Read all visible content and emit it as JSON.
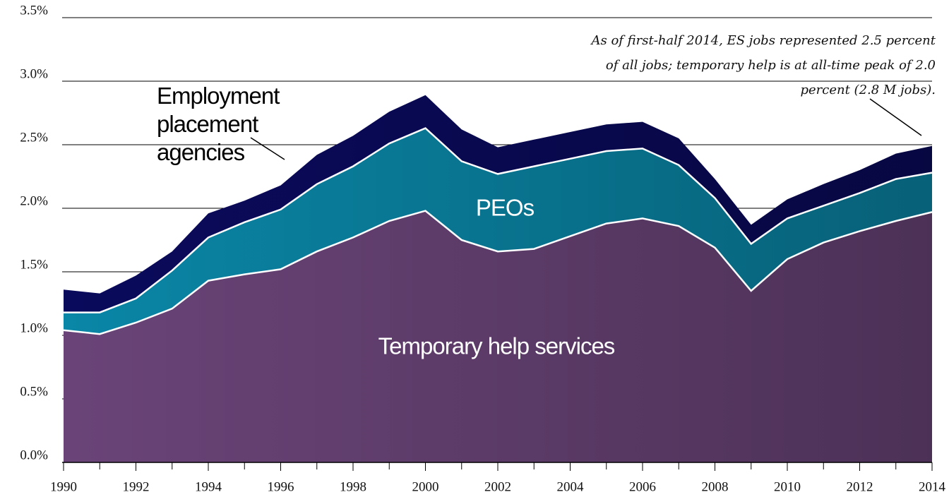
{
  "chart_data": {
    "type": "stacked_area",
    "x": [
      1990,
      1991,
      1992,
      1993,
      1994,
      1995,
      1996,
      1997,
      1998,
      1999,
      2000,
      2001,
      2002,
      2003,
      2004,
      2005,
      2006,
      2007,
      2008,
      2009,
      2010,
      2011,
      2012,
      2013,
      2014
    ],
    "series": [
      {
        "name": "Temporary help services",
        "color": "#6a4478",
        "values": [
          1.04,
          1.01,
          1.1,
          1.21,
          1.43,
          1.48,
          1.52,
          1.66,
          1.77,
          1.9,
          1.98,
          1.75,
          1.66,
          1.68,
          1.78,
          1.88,
          1.92,
          1.86,
          1.69,
          1.35,
          1.6,
          1.73,
          1.82,
          1.9,
          1.97
        ]
      },
      {
        "name": "PEOs",
        "color": "#0a86a6",
        "values": [
          0.14,
          0.17,
          0.19,
          0.3,
          0.34,
          0.41,
          0.47,
          0.53,
          0.56,
          0.61,
          0.65,
          0.62,
          0.61,
          0.65,
          0.61,
          0.57,
          0.55,
          0.48,
          0.39,
          0.37,
          0.32,
          0.29,
          0.3,
          0.33,
          0.31
        ]
      },
      {
        "name": "Employment placement agencies",
        "color": "#0a0a5c",
        "values": [
          0.18,
          0.15,
          0.18,
          0.15,
          0.19,
          0.17,
          0.19,
          0.23,
          0.24,
          0.25,
          0.26,
          0.25,
          0.21,
          0.21,
          0.21,
          0.21,
          0.21,
          0.21,
          0.15,
          0.15,
          0.15,
          0.17,
          0.18,
          0.2,
          0.21
        ]
      }
    ],
    "xlim": [
      1990,
      2014
    ],
    "xticks": [
      1990,
      1992,
      1994,
      1996,
      1998,
      2000,
      2002,
      2004,
      2006,
      2008,
      2010,
      2012,
      2014
    ],
    "ylim": [
      0,
      3.5
    ],
    "yticks": [
      {
        "value": 0,
        "label": "0.0%"
      },
      {
        "value": 0.5,
        "label": "0.5%"
      },
      {
        "value": 1,
        "label": "1.0%"
      },
      {
        "value": 1.5,
        "label": "1.5%"
      },
      {
        "value": 2,
        "label": "2.0%"
      },
      {
        "value": 2.5,
        "label": "2.5%"
      },
      {
        "value": 3,
        "label": "3.0%"
      },
      {
        "value": 3.5,
        "label": "3.5%"
      }
    ],
    "grid": true,
    "annotation": "As of first-half 2014, ES jobs represented 2.5 percent of all jobs; temporary help is at all-time peak of 2.0 percent (2.8 M jobs)."
  }
}
